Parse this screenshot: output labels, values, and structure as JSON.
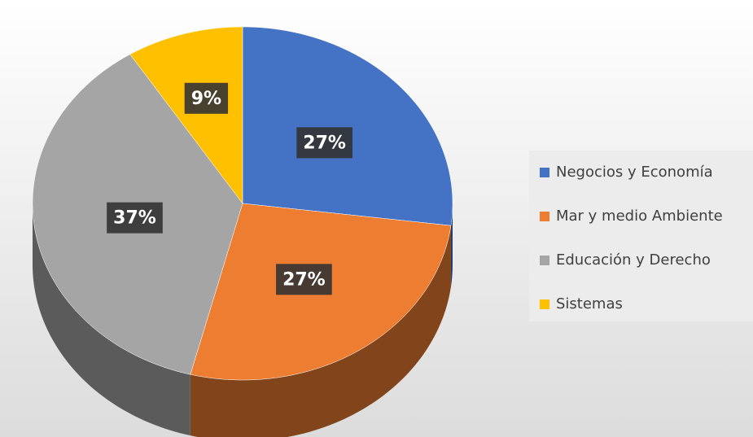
{
  "chart_data": {
    "type": "pie",
    "categories": [
      "Negocios y Economía",
      "Mar y medio Ambiente",
      "Educación y Derecho",
      "Sistemas"
    ],
    "values": [
      27,
      27,
      37,
      9
    ],
    "value_labels": [
      "27%",
      "27%",
      "37%",
      "9%"
    ],
    "colors": [
      "#4472c4",
      "#ed7d31",
      "#a5a5a5",
      "#ffc000"
    ],
    "legend": "right"
  }
}
